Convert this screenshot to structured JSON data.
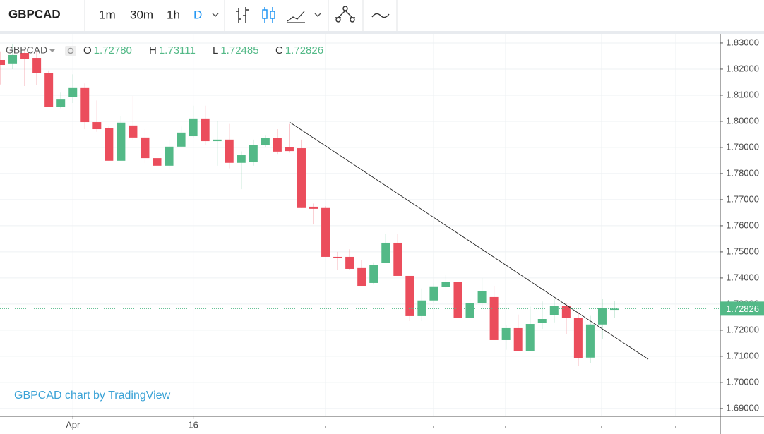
{
  "toolbar": {
    "symbol": "GBPCAD",
    "intervals": [
      "1m",
      "30m",
      "1h",
      "D"
    ]
  },
  "chart_data": {
    "type": "candlestick",
    "legend": {
      "symbol": "GBPCAD",
      "fields": [
        {
          "key": "O",
          "value": "1.72780"
        },
        {
          "key": "H",
          "value": "1.73111"
        },
        {
          "key": "L",
          "value": "1.72485"
        },
        {
          "key": "C",
          "value": "1.72826"
        }
      ]
    },
    "watermark": "GBPCAD chart by TradingView",
    "up_color": "#53b987",
    "down_color": "#eb4d5c",
    "categories": [
      null,
      null,
      null,
      null,
      null,
      null,
      "Apr",
      null,
      null,
      null,
      null,
      null,
      null,
      null,
      null,
      null,
      "16",
      null,
      null,
      null,
      null,
      null,
      null,
      null,
      null,
      null,
      null,
      null,
      null,
      null,
      null,
      null,
      null,
      null,
      null,
      null,
      null,
      null,
      null,
      null,
      null,
      null,
      null,
      null,
      null,
      null,
      null,
      null,
      null,
      null,
      null,
      null
    ],
    "open": [
      1.8235,
      1.8222,
      1.8262,
      1.8243,
      1.8186,
      1.8054,
      1.8092,
      1.813,
      1.7997,
      1.7973,
      1.7849,
      1.7984,
      1.7938,
      1.7859,
      1.783,
      1.7903,
      1.7943,
      1.8011,
      1.7924,
      1.793,
      1.7841,
      1.7843,
      1.7908,
      1.7935,
      1.79,
      1.7897,
      1.7673,
      1.7668,
      1.7481,
      1.7481,
      1.7438,
      1.7381,
      1.7457,
      1.7535,
      1.7408,
      1.7254,
      1.7314,
      1.7365,
      1.7384,
      1.7246,
      1.7303,
      1.7327,
      1.7162,
      1.7208,
      1.7119,
      1.7227,
      1.7257,
      1.7292,
      1.7246,
      1.7095,
      1.7222,
      1.7278
    ],
    "high": [
      1.8268,
      1.8295,
      1.8278,
      1.827,
      1.8195,
      1.811,
      1.818,
      1.8145,
      1.808,
      1.798,
      1.802,
      1.8097,
      1.797,
      1.788,
      1.793,
      1.798,
      1.806,
      1.806,
      1.8,
      1.799,
      1.7885,
      1.793,
      1.7945,
      1.797,
      1.799,
      1.793,
      1.7685,
      1.7675,
      1.75,
      1.751,
      1.747,
      1.746,
      1.757,
      1.757,
      1.7408,
      1.736,
      1.738,
      1.741,
      1.739,
      1.732,
      1.74,
      1.737,
      1.722,
      1.726,
      1.729,
      1.731,
      1.732,
      1.7305,
      1.727,
      1.7255,
      1.732,
      1.73111
    ],
    "low": [
      1.8141,
      1.82,
      1.8135,
      1.814,
      1.8054,
      1.805,
      1.807,
      1.797,
      1.796,
      1.7849,
      1.7849,
      1.793,
      1.784,
      1.782,
      1.7815,
      1.79,
      1.7935,
      1.791,
      1.783,
      1.782,
      1.774,
      1.783,
      1.79,
      1.7875,
      1.788,
      1.7668,
      1.7605,
      1.7481,
      1.743,
      1.743,
      1.737,
      1.7375,
      1.7457,
      1.7408,
      1.7235,
      1.7235,
      1.7305,
      1.736,
      1.7246,
      1.7246,
      1.728,
      1.7162,
      1.7125,
      1.7119,
      1.7119,
      1.7205,
      1.723,
      1.7185,
      1.7062,
      1.7075,
      1.7165,
      1.72485
    ],
    "close": [
      1.8216,
      1.8254,
      1.824,
      1.8186,
      1.8054,
      1.8086,
      1.813,
      1.7997,
      1.797,
      1.7849,
      1.7995,
      1.7938,
      1.7859,
      1.783,
      1.7903,
      1.7957,
      1.8011,
      1.7924,
      1.793,
      1.7841,
      1.787,
      1.791,
      1.7935,
      1.7884,
      1.7886,
      1.7668,
      1.7665,
      1.7481,
      1.7476,
      1.7435,
      1.737,
      1.7451,
      1.7535,
      1.7408,
      1.7254,
      1.7314,
      1.7368,
      1.7384,
      1.7246,
      1.7303,
      1.7351,
      1.7162,
      1.7208,
      1.7119,
      1.7224,
      1.7243,
      1.7292,
      1.7246,
      1.7092,
      1.7222,
      1.7284,
      1.72826
    ],
    "ylim": [
      1.687,
      1.8335
    ],
    "yticks": [
      {
        "value": 1.69,
        "label": "1.69000"
      },
      {
        "value": 1.7,
        "label": "1.70000"
      },
      {
        "value": 1.71,
        "label": "1.71000"
      },
      {
        "value": 1.72,
        "label": "1.72000"
      },
      {
        "value": 1.73,
        "label": "1.73000"
      },
      {
        "value": 1.74,
        "label": "1.74000"
      },
      {
        "value": 1.75,
        "label": "1.75000"
      },
      {
        "value": 1.76,
        "label": "1.76000"
      },
      {
        "value": 1.77,
        "label": "1.77000"
      },
      {
        "value": 1.78,
        "label": "1.78000"
      },
      {
        "value": 1.79,
        "label": "1.79000"
      },
      {
        "value": 1.8,
        "label": "1.80000"
      },
      {
        "value": 1.81,
        "label": "1.81000"
      },
      {
        "value": 1.82,
        "label": "1.82000"
      },
      {
        "value": 1.83,
        "label": "1.83000"
      }
    ],
    "last_price": {
      "value": 1.72826,
      "label": "1.72826"
    },
    "grid": true
  }
}
